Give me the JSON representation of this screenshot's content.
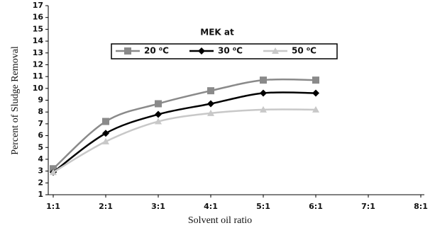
{
  "chart_data": {
    "type": "line",
    "xlabel": "Solvent oil ratio",
    "ylabel": "Percent of Sludge Removal",
    "legend_title": "MEK at",
    "legend_position": "top",
    "categories": [
      "1:1",
      "2:1",
      "3:1",
      "4:1",
      "5:1",
      "6:1",
      "7:1",
      "8:1"
    ],
    "series": [
      {
        "name": "20 ⁰C",
        "color": "#8a8a8a",
        "marker": "square",
        "values": [
          3.2,
          7.2,
          8.7,
          9.8,
          10.7,
          10.7,
          null,
          null
        ]
      },
      {
        "name": "30 ⁰C",
        "color": "#000000",
        "marker": "diamond",
        "values": [
          2.9,
          6.2,
          7.8,
          8.7,
          9.6,
          9.6,
          null,
          null
        ]
      },
      {
        "name": "50 ⁰C",
        "color": "#c8c8c8",
        "marker": "triangle",
        "values": [
          2.9,
          5.5,
          7.2,
          7.9,
          8.2,
          8.2,
          null,
          null
        ]
      }
    ],
    "ylim": [
      1,
      17
    ],
    "yticks": [
      1,
      2,
      3,
      4,
      5,
      6,
      7,
      8,
      9,
      10,
      11,
      12,
      13,
      14,
      15,
      16,
      17
    ],
    "grid": false
  }
}
